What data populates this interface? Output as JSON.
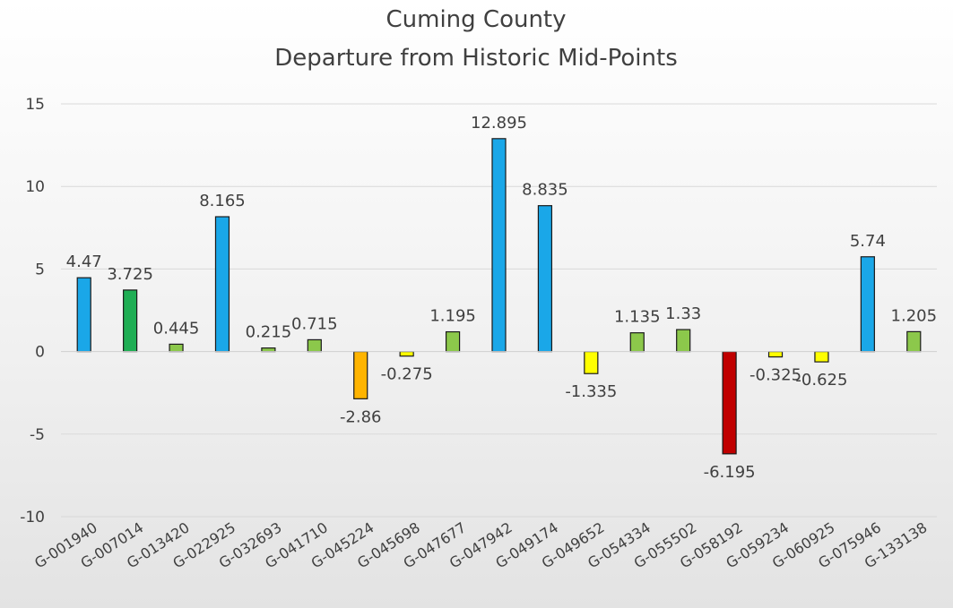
{
  "chart_data": {
    "type": "bar",
    "title": "Cuming County",
    "subtitle": "Departure from Historic Mid-Points",
    "xlabel": "",
    "ylabel": "",
    "ylim": [
      -10,
      15
    ],
    "yticks": [
      15,
      10,
      5,
      0,
      -5,
      -10
    ],
    "grid": true,
    "legend": "none",
    "categories": [
      "G-001940",
      "G-007014",
      "G-013420",
      "G-022925",
      "G-032693",
      "G-041710",
      "G-045224",
      "G-045698",
      "G-047677",
      "G-047942",
      "G-049174",
      "G-049652",
      "G-054334",
      "G-055502",
      "G-058192",
      "G-059234",
      "G-060925",
      "G-075946",
      "G-133138"
    ],
    "values": [
      4.47,
      3.725,
      0.445,
      8.165,
      0.215,
      0.715,
      -2.86,
      -0.275,
      1.195,
      12.895,
      8.835,
      -1.335,
      1.135,
      1.33,
      -6.195,
      -0.325,
      -0.625,
      5.74,
      1.205
    ],
    "value_labels": [
      "4.47",
      "3.725",
      "0.445",
      "8.165",
      "0.215",
      "0.715",
      "-2.86",
      "-0.275",
      "1.195",
      "12.895",
      "8.835",
      "-1.335",
      "1.135",
      "1.33",
      "-6.195",
      "-0.325",
      "-0.625",
      "5.74",
      "1.205"
    ],
    "bar_colors": [
      "#1aa7e8",
      "#1fae54",
      "#8cc84b",
      "#1aa7e8",
      "#8cc84b",
      "#8cc84b",
      "#ffb400",
      "#ffff00",
      "#8cc84b",
      "#1aa7e8",
      "#1aa7e8",
      "#ffff00",
      "#8cc84b",
      "#8cc84b",
      "#c00000",
      "#ffff00",
      "#ffff00",
      "#1aa7e8",
      "#8cc84b"
    ]
  }
}
